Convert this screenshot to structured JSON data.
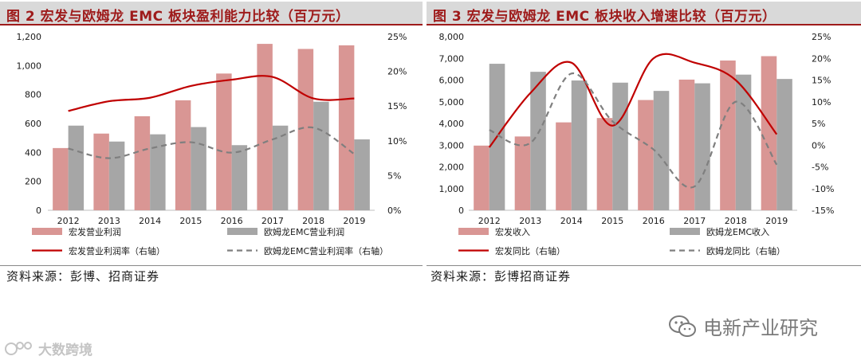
{
  "figures": {
    "left": {
      "title": "图 2 宏发与欧姆龙 EMC 板块盈利能力比较（百万元）",
      "source": "资料来源：彭博、招商证券"
    },
    "right": {
      "title": "图 3 宏发与欧姆龙 EMC 板块收入增速比较（百万元）",
      "source": "资料来源：彭博招商证券"
    }
  },
  "watermarks": {
    "right": "电新产业研究",
    "left": "大数跨境"
  },
  "colors": {
    "pink": "#d99694",
    "gray": "#a6a6a6",
    "red": "#c00000",
    "dash": "#7f7f7f",
    "title_red": "#9e1b1b",
    "title_bg": "#d9d9d9"
  },
  "chart_data": [
    {
      "type": "bar",
      "title": "宏发与欧姆龙 EMC 板块盈利能力比较（百万元）",
      "categories": [
        "2012",
        "2013",
        "2014",
        "2015",
        "2016",
        "2017",
        "2018",
        "2019"
      ],
      "ylim": [
        0,
        1200
      ],
      "yticks": [
        0,
        200,
        400,
        600,
        800,
        1000,
        1200
      ],
      "ytick_labels": [
        "0",
        "200",
        "400",
        "600",
        "800",
        "1,000",
        "1,200"
      ],
      "y2lim": [
        0,
        25
      ],
      "y2ticks": [
        0,
        5,
        10,
        15,
        20,
        25
      ],
      "y2tick_labels": [
        "0%",
        "5%",
        "10%",
        "15%",
        "20%",
        "25%"
      ],
      "series": [
        {
          "name": "宏发营业利润",
          "type": "bar",
          "axis": "left",
          "values": [
            430,
            530,
            650,
            760,
            945,
            1150,
            1115,
            1140
          ]
        },
        {
          "name": "欧姆龙EMC营业利润",
          "type": "bar",
          "axis": "left",
          "values": [
            585,
            475,
            525,
            575,
            450,
            585,
            750,
            490
          ]
        },
        {
          "name": "宏发营业利润率（右轴）",
          "type": "line",
          "axis": "right",
          "values": [
            14.3,
            15.7,
            16.2,
            17.9,
            18.8,
            19.2,
            16.1,
            16.1
          ]
        },
        {
          "name": "欧姆龙EMC营业利润率（右轴）",
          "type": "line",
          "dashed": true,
          "axis": "right",
          "values": [
            8.9,
            7.5,
            8.9,
            9.8,
            8.3,
            10.2,
            11.9,
            8.1
          ]
        }
      ],
      "legend": [
        {
          "label": "宏发营业利润",
          "kind": "bar",
          "color": "#d99694"
        },
        {
          "label": "欧姆龙EMC营业利润",
          "kind": "bar",
          "color": "#a6a6a6"
        },
        {
          "label": "宏发营业利润率（右轴）",
          "kind": "line",
          "color": "#c00000"
        },
        {
          "label": "欧姆龙EMC营业利润率（右轴）",
          "kind": "dash",
          "color": "#7f7f7f"
        }
      ]
    },
    {
      "type": "bar",
      "title": "宏发与欧姆龙 EMC 板块收入增速比较（百万元）",
      "categories": [
        "2012",
        "2013",
        "2014",
        "2015",
        "2016",
        "2017",
        "2018",
        "2019"
      ],
      "ylim": [
        0,
        8000
      ],
      "yticks": [
        0,
        1000,
        2000,
        3000,
        4000,
        5000,
        6000,
        7000,
        8000
      ],
      "ytick_labels": [
        "0",
        "1,000",
        "2,000",
        "3,000",
        "4,000",
        "5,000",
        "6,000",
        "7,000",
        "8,000"
      ],
      "y2lim": [
        -15,
        25
      ],
      "y2ticks": [
        -15,
        -10,
        -5,
        0,
        5,
        10,
        15,
        20,
        25
      ],
      "y2tick_labels": [
        "-15%",
        "-10%",
        "-5%",
        "0%",
        "5%",
        "10%",
        "15%",
        "20%",
        "25%"
      ],
      "series": [
        {
          "name": "宏发收入",
          "type": "bar",
          "axis": "left",
          "values": [
            2980,
            3400,
            4050,
            4250,
            5080,
            6020,
            6900,
            7100
          ]
        },
        {
          "name": "欧姆龙EMC收入",
          "type": "bar",
          "axis": "left",
          "values": [
            6750,
            6380,
            5980,
            5880,
            5500,
            5850,
            6250,
            6050
          ]
        },
        {
          "name": "宏发同比（右轴）",
          "type": "line",
          "axis": "right",
          "values": [
            -0.5,
            12.0,
            19.0,
            4.5,
            20.0,
            19.0,
            15.0,
            2.5
          ]
        },
        {
          "name": "欧姆龙同比（右轴）",
          "type": "line",
          "dashed": true,
          "axis": "right",
          "values": [
            3.5,
            0.5,
            16.5,
            5.5,
            -1.0,
            -9.5,
            10.0,
            -4.5
          ]
        }
      ],
      "legend": [
        {
          "label": "宏发收入",
          "kind": "bar",
          "color": "#d99694"
        },
        {
          "label": "欧姆龙EMC收入",
          "kind": "bar",
          "color": "#a6a6a6"
        },
        {
          "label": "宏发同比（右轴）",
          "kind": "line",
          "color": "#c00000"
        },
        {
          "label": "欧姆龙同比（右轴）",
          "kind": "dash",
          "color": "#7f7f7f"
        }
      ]
    }
  ]
}
